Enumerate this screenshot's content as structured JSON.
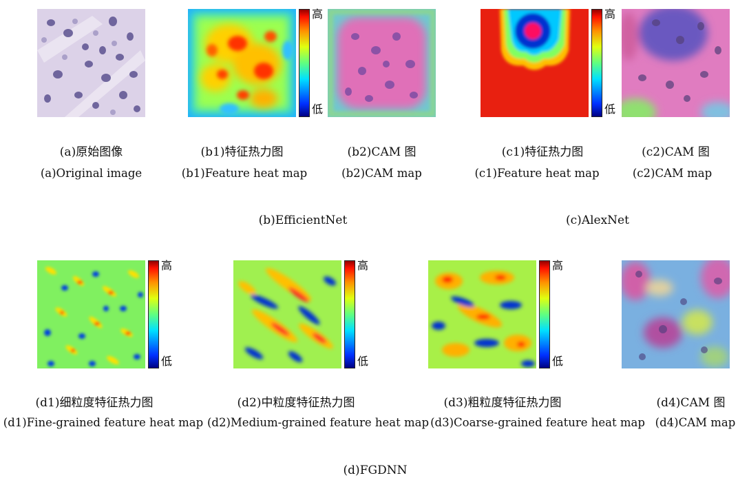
{
  "colorbar": {
    "high": "高",
    "low": "低"
  },
  "captions": {
    "a": {
      "zh": "(a)原始图像",
      "en": "(a)Original image"
    },
    "b1": {
      "zh": "(b1)特征热力图",
      "en": "(b1)Feature heat map"
    },
    "b2": {
      "zh": "(b2)CAM 图",
      "en": "(b2)CAM map"
    },
    "c1": {
      "zh": "(c1)特征热力图",
      "en": "(c1)Feature heat map"
    },
    "c2": {
      "zh": "(c2)CAM 图",
      "en": "(c2)CAM map"
    },
    "d1": {
      "zh": "(d1)细粒度特征热力图",
      "en": "(d1)Fine-grained feature heat map"
    },
    "d2": {
      "zh": "(d2)中粒度特征热力图",
      "en": "(d2)Medium-grained feature heat map"
    },
    "d3": {
      "zh": "(d3)粗粒度特征热力图",
      "en": "(d3)Coarse-grained feature heat map"
    },
    "d4": {
      "zh": "(d4)CAM 图",
      "en": "(d4)CAM map"
    }
  },
  "groups": {
    "b": "(b)EfficientNet",
    "c": "(c)AlexNet",
    "d": "(d)FGDNN"
  },
  "colors": {
    "jet": [
      "#00008f",
      "#0050ff",
      "#00d0ff",
      "#40ff90",
      "#c8ff20",
      "#ffd000",
      "#ff5000",
      "#c80000"
    ],
    "tissue_bg": "#d9cfe6",
    "nucleus": "#5a4f8a"
  }
}
